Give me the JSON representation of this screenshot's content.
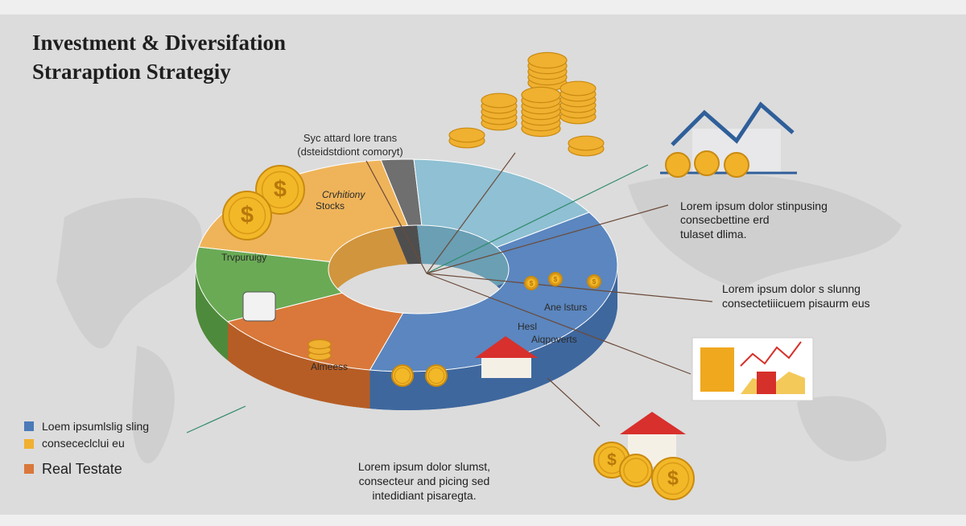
{
  "header": {
    "title_line1": "Investment & Diversifation",
    "title_line2": "Straraption Strategiy"
  },
  "coin_symbol": "$",
  "segment_labels": {
    "top_note_line1": "Syc attard lore trans",
    "top_note_line2": "(dsteidstdiont comoryt)",
    "stocks_line1": "Crvhitiony",
    "stocks_line2": "Stocks",
    "left": "Trvpuruigy",
    "bottom_left": "Almeess",
    "right": "Ane lsturs",
    "lower_right_line1": "Hesl",
    "lower_right_line2": "Aiqpoverts"
  },
  "notes": {
    "right_top": [
      "Lorem ipsum dolor stinpusing",
      "consecbettine erd",
      "tulaset dlima."
    ],
    "right_middle": [
      "Lorem ipsum dolor s slunng",
      "consectetiiicuem pisaurm eus"
    ],
    "bottom": [
      "Lorem ipsum dolor slumst,",
      "consecteur and picing sed",
      "intedidiant pisaregta."
    ]
  },
  "legend": [
    "Loem ipsumlslig sling",
    "consececlclui eu",
    "Real Testate"
  ]
}
